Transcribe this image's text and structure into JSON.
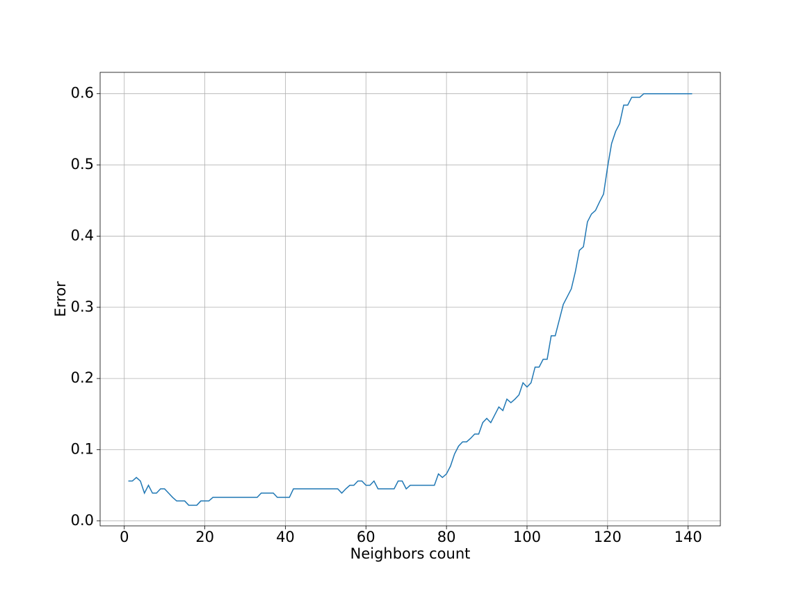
{
  "chart_data": {
    "type": "line",
    "xlabel": "Neighbors count",
    "ylabel": "Error",
    "x": [
      1,
      2,
      3,
      4,
      5,
      6,
      7,
      8,
      9,
      10,
      11,
      12,
      13,
      14,
      15,
      16,
      17,
      18,
      19,
      20,
      21,
      22,
      23,
      24,
      25,
      26,
      27,
      28,
      29,
      30,
      31,
      32,
      33,
      34,
      35,
      36,
      37,
      38,
      39,
      40,
      41,
      42,
      43,
      44,
      45,
      46,
      47,
      48,
      49,
      50,
      51,
      52,
      53,
      54,
      55,
      56,
      57,
      58,
      59,
      60,
      61,
      62,
      63,
      64,
      65,
      66,
      67,
      68,
      69,
      70,
      71,
      72,
      73,
      74,
      75,
      76,
      77,
      78,
      79,
      80,
      81,
      82,
      83,
      84,
      85,
      86,
      87,
      88,
      89,
      90,
      91,
      92,
      93,
      94,
      95,
      96,
      97,
      98,
      99,
      100,
      101,
      102,
      103,
      104,
      105,
      106,
      107,
      108,
      109,
      110,
      111,
      112,
      113,
      114,
      115,
      116,
      117,
      118,
      119,
      120,
      121,
      122,
      123,
      124,
      125,
      126,
      127,
      128,
      129,
      130,
      131,
      132,
      133,
      134,
      135,
      136,
      137,
      138,
      139,
      140,
      141
    ],
    "series": [
      {
        "color": "#1f77b4",
        "values": [
          0.056,
          0.056,
          0.061,
          0.056,
          0.039,
          0.05,
          0.039,
          0.039,
          0.045,
          0.045,
          0.039,
          0.033,
          0.028,
          0.028,
          0.028,
          0.022,
          0.022,
          0.022,
          0.028,
          0.028,
          0.028,
          0.033,
          0.033,
          0.033,
          0.033,
          0.033,
          0.033,
          0.033,
          0.033,
          0.033,
          0.033,
          0.033,
          0.033,
          0.039,
          0.039,
          0.039,
          0.039,
          0.033,
          0.033,
          0.033,
          0.033,
          0.045,
          0.045,
          0.045,
          0.045,
          0.045,
          0.045,
          0.045,
          0.045,
          0.045,
          0.045,
          0.045,
          0.045,
          0.039,
          0.045,
          0.05,
          0.05,
          0.056,
          0.056,
          0.05,
          0.05,
          0.056,
          0.045,
          0.045,
          0.045,
          0.045,
          0.045,
          0.056,
          0.056,
          0.045,
          0.05,
          0.05,
          0.05,
          0.05,
          0.05,
          0.05,
          0.05,
          0.066,
          0.061,
          0.066,
          0.077,
          0.094,
          0.105,
          0.111,
          0.111,
          0.116,
          0.122,
          0.122,
          0.138,
          0.144,
          0.138,
          0.149,
          0.16,
          0.155,
          0.171,
          0.166,
          0.171,
          0.177,
          0.194,
          0.188,
          0.194,
          0.216,
          0.216,
          0.227,
          0.227,
          0.26,
          0.26,
          0.282,
          0.304,
          0.315,
          0.326,
          0.35,
          0.38,
          0.385,
          0.42,
          0.431,
          0.436,
          0.448,
          0.459,
          0.497,
          0.53,
          0.547,
          0.558,
          0.584,
          0.584,
          0.595,
          0.595,
          0.595,
          0.6,
          0.6,
          0.6,
          0.6,
          0.6,
          0.6,
          0.6,
          0.6,
          0.6,
          0.6,
          0.6,
          0.6,
          0.6
        ]
      }
    ],
    "xlim": [
      -6,
      148
    ],
    "ylim": [
      -0.007,
      0.63
    ],
    "xticks": [
      0,
      20,
      40,
      60,
      80,
      100,
      120,
      140
    ],
    "yticks": [
      {
        "value": 0,
        "label": "0.0"
      },
      0.1,
      0.2,
      0.3,
      0.4,
      0.5,
      0.6
    ],
    "grid": true
  }
}
